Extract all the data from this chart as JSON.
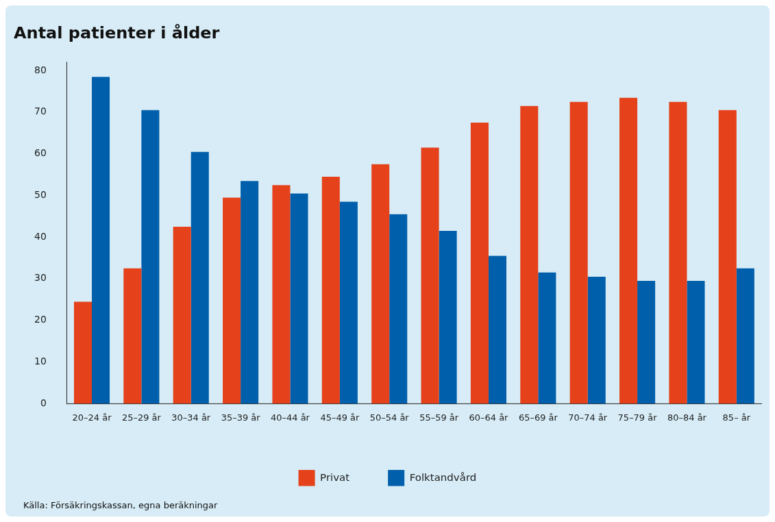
{
  "chart_data": {
    "type": "bar",
    "title": "Antal patienter i ålder",
    "categories": [
      "20–24 år",
      "25–29 år",
      "30–34 år",
      "35–39 år",
      "40–44 år",
      "45–49 år",
      "50–54 år",
      "55–59 år",
      "60–64 år",
      "65–69 år",
      "70–74 år",
      "75–79 år",
      "80–84 år",
      "85– år"
    ],
    "series": [
      {
        "name": "Privat",
        "color": "#e5411b",
        "values": [
          24.5,
          32.5,
          42.5,
          49.5,
          52.5,
          54.5,
          57.5,
          61.5,
          67.5,
          71.5,
          72.5,
          73.5,
          72.5,
          70.5
        ]
      },
      {
        "name": "Folktandvård",
        "color": "#005fab",
        "values": [
          78.5,
          70.5,
          60.5,
          53.5,
          50.5,
          48.5,
          45.5,
          41.5,
          35.5,
          31.5,
          30.5,
          29.5,
          29.5,
          32.5
        ]
      }
    ],
    "ylim": [
      0,
      82
    ],
    "yticks": [
      0,
      10,
      20,
      30,
      40,
      50,
      60,
      70,
      80
    ],
    "grid": false,
    "legend": "bottom",
    "annotations": [
      "Källa: Försäkringskassan, egna beräkningar"
    ]
  }
}
